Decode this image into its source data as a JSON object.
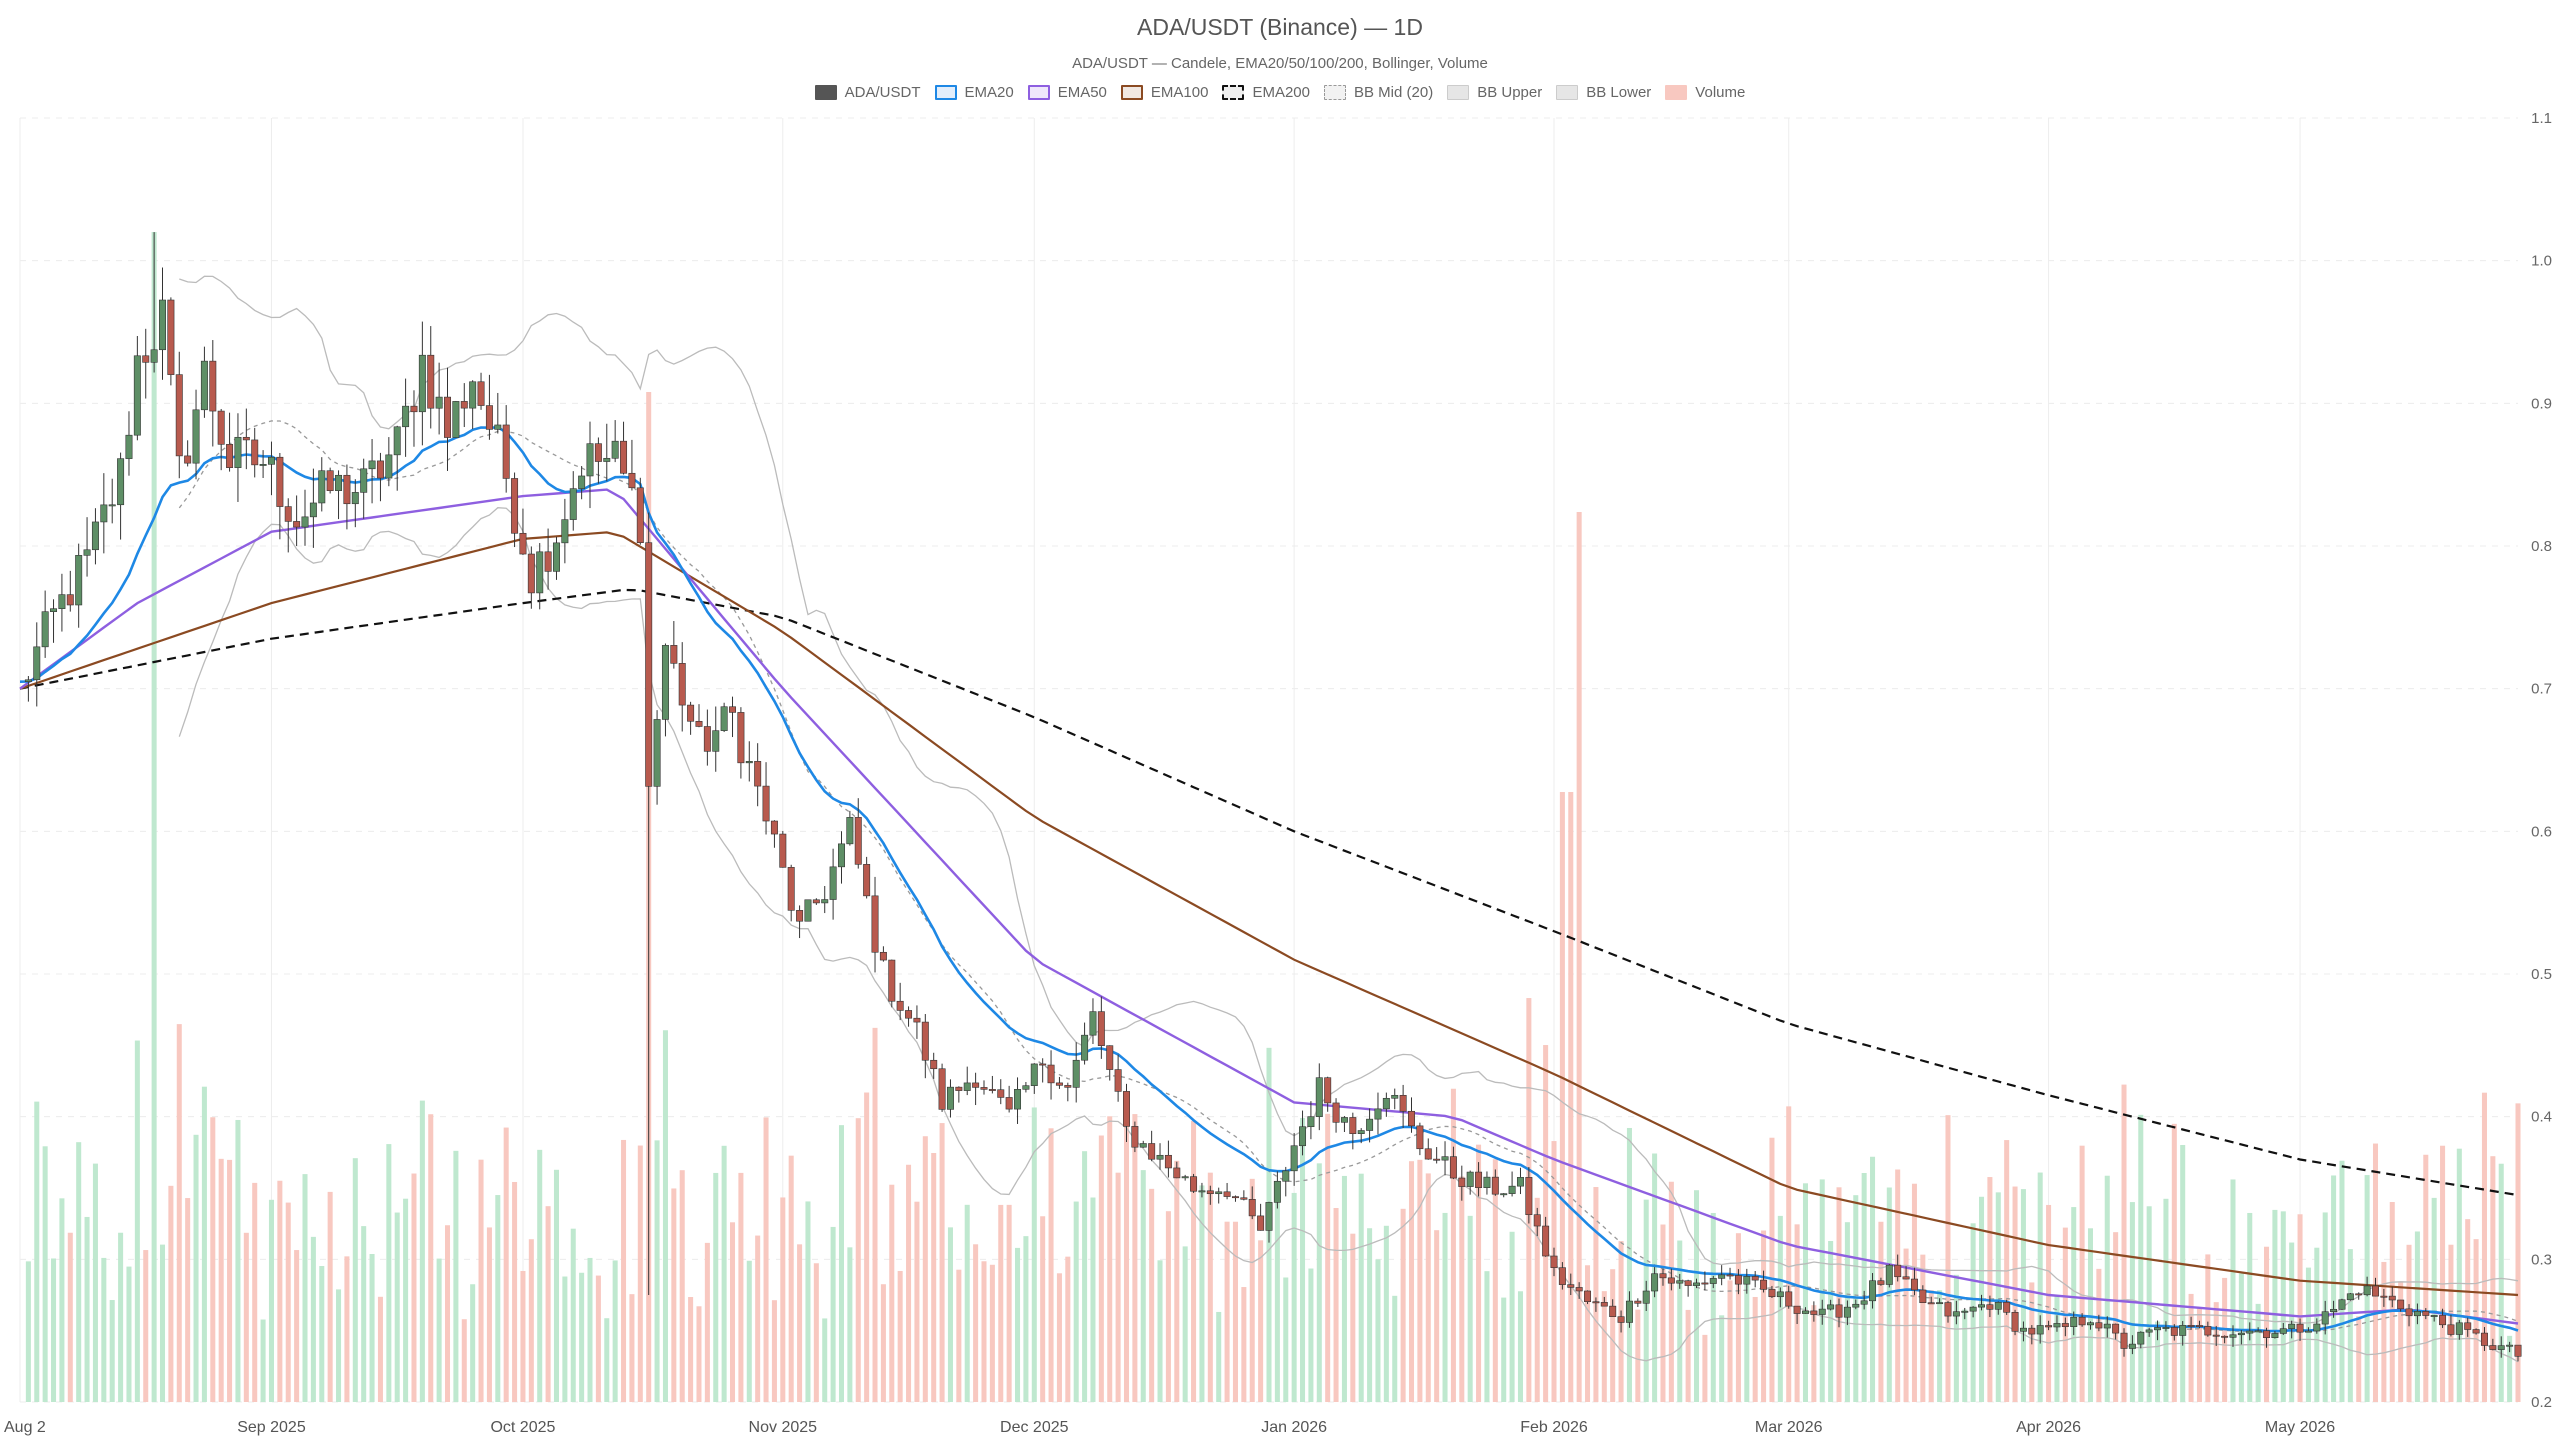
{
  "chart_data": {
    "type": "candlestick",
    "title": "ADA/USDT (Binance) — 1D",
    "subtitle": "ADA/USDT — Candele, EMA20/50/100/200, Bollinger, Volume",
    "legend": [
      "ADA/USDT",
      "EMA20",
      "EMA50",
      "EMA100",
      "EMA200",
      "BB Mid (20)",
      "BB Upper",
      "BB Lower",
      "Volume"
    ],
    "legend_placement": "top-center",
    "y_ticks": [
      0.2,
      0.3,
      0.4,
      0.5,
      0.6,
      0.7,
      0.8,
      0.9,
      1.0,
      1.1
    ],
    "y_tick_labels": [
      "0.2",
      "0.3",
      "0.4",
      "0.5",
      "0.6",
      "0.7",
      "0.8",
      "0.9",
      "1.0",
      "1.1"
    ],
    "ylim": [
      0.2,
      1.1
    ],
    "y_axis_side": "right",
    "xlim": [
      "2025-08-02",
      "2026-05-27"
    ],
    "x_ticks": [
      "2025-08-02",
      "2025-09-01",
      "2025-10-01",
      "2025-11-01",
      "2025-12-01",
      "2026-01-01",
      "2026-02-01",
      "2026-03-01",
      "2026-04-01",
      "2026-05-01"
    ],
    "x_tick_labels": [
      "Aug 2",
      "Sep 2025",
      "Oct 2025",
      "Nov 2025",
      "Dec 2025",
      "Jan 2026",
      "Feb 2026",
      "Mar 2026",
      "Apr 2026",
      "May 2026"
    ],
    "grid": true,
    "colors": {
      "up": "#5e8f66",
      "down": "#b85a4e",
      "ema20": "#1e88e5",
      "ema50": "#8e5fe0",
      "ema100": "#8b4a22",
      "ema200": "#111111",
      "bb_mid": "#999999",
      "bb_band": "#bbbbbb",
      "vol_up": "#bfe8cf",
      "vol_down": "#f8c8c0"
    },
    "close_anchors": [
      [
        "2025-08-02",
        0.7
      ],
      [
        "2025-08-06",
        0.75
      ],
      [
        "2025-08-10",
        0.79
      ],
      [
        "2025-08-14",
        0.85
      ],
      [
        "2025-08-16",
        0.93
      ],
      [
        "2025-08-19",
        0.96
      ],
      [
        "2025-08-21",
        0.85
      ],
      [
        "2025-08-24",
        0.92
      ],
      [
        "2025-08-27",
        0.86
      ],
      [
        "2025-08-31",
        0.86
      ],
      [
        "2025-09-04",
        0.82
      ],
      [
        "2025-09-08",
        0.84
      ],
      [
        "2025-09-12",
        0.84
      ],
      [
        "2025-09-16",
        0.87
      ],
      [
        "2025-09-19",
        0.93
      ],
      [
        "2025-09-22",
        0.88
      ],
      [
        "2025-09-25",
        0.92
      ],
      [
        "2025-09-29",
        0.85
      ],
      [
        "2025-10-02",
        0.78
      ],
      [
        "2025-10-05",
        0.81
      ],
      [
        "2025-10-08",
        0.86
      ],
      [
        "2025-10-12",
        0.86
      ],
      [
        "2025-10-15",
        0.82
      ],
      [
        "2025-10-16",
        0.63
      ],
      [
        "2025-10-18",
        0.73
      ],
      [
        "2025-10-22",
        0.66
      ],
      [
        "2025-10-26",
        0.68
      ],
      [
        "2025-10-30",
        0.61
      ],
      [
        "2025-11-03",
        0.53
      ],
      [
        "2025-11-06",
        0.56
      ],
      [
        "2025-11-09",
        0.6
      ],
      [
        "2025-11-13",
        0.5
      ],
      [
        "2025-11-17",
        0.46
      ],
      [
        "2025-11-20",
        0.41
      ],
      [
        "2025-11-24",
        0.43
      ],
      [
        "2025-11-28",
        0.4
      ],
      [
        "2025-12-02",
        0.44
      ],
      [
        "2025-12-05",
        0.42
      ],
      [
        "2025-12-08",
        0.47
      ],
      [
        "2025-12-12",
        0.39
      ],
      [
        "2025-12-16",
        0.37
      ],
      [
        "2025-12-20",
        0.35
      ],
      [
        "2025-12-24",
        0.35
      ],
      [
        "2025-12-28",
        0.32
      ],
      [
        "2026-01-01",
        0.38
      ],
      [
        "2026-01-04",
        0.42
      ],
      [
        "2026-01-08",
        0.39
      ],
      [
        "2026-01-12",
        0.42
      ],
      [
        "2026-01-16",
        0.38
      ],
      [
        "2026-01-20",
        0.36
      ],
      [
        "2026-01-24",
        0.35
      ],
      [
        "2026-01-28",
        0.35
      ],
      [
        "2026-02-01",
        0.29
      ],
      [
        "2026-02-05",
        0.27
      ],
      [
        "2026-02-09",
        0.26
      ],
      [
        "2026-02-13",
        0.29
      ],
      [
        "2026-02-17",
        0.28
      ],
      [
        "2026-02-21",
        0.29
      ],
      [
        "2026-02-25",
        0.28
      ],
      [
        "2026-03-01",
        0.27
      ],
      [
        "2026-03-05",
        0.26
      ],
      [
        "2026-03-09",
        0.27
      ],
      [
        "2026-03-13",
        0.29
      ],
      [
        "2026-03-17",
        0.27
      ],
      [
        "2026-03-21",
        0.26
      ],
      [
        "2026-03-25",
        0.27
      ],
      [
        "2026-03-29",
        0.25
      ],
      [
        "2026-04-02",
        0.25
      ],
      [
        "2026-04-06",
        0.26
      ],
      [
        "2026-04-10",
        0.24
      ],
      [
        "2026-04-14",
        0.25
      ],
      [
        "2026-04-18",
        0.25
      ],
      [
        "2026-04-22",
        0.25
      ],
      [
        "2026-04-26",
        0.25
      ],
      [
        "2026-04-30",
        0.25
      ],
      [
        "2026-05-04",
        0.26
      ],
      [
        "2026-05-08",
        0.28
      ],
      [
        "2026-05-12",
        0.27
      ],
      [
        "2026-05-16",
        0.26
      ],
      [
        "2026-05-20",
        0.25
      ],
      [
        "2026-05-24",
        0.24
      ],
      [
        "2026-05-27",
        0.233
      ]
    ],
    "ema200_anchors": [
      [
        "2025-08-02",
        0.7
      ],
      [
        "2025-09-01",
        0.735
      ],
      [
        "2025-10-01",
        0.76
      ],
      [
        "2025-10-14",
        0.77
      ],
      [
        "2025-11-01",
        0.75
      ],
      [
        "2025-12-01",
        0.68
      ],
      [
        "2026-01-01",
        0.6
      ],
      [
        "2026-02-01",
        0.53
      ],
      [
        "2026-03-01",
        0.465
      ],
      [
        "2026-04-01",
        0.415
      ],
      [
        "2026-05-01",
        0.37
      ],
      [
        "2026-05-27",
        0.345
      ]
    ],
    "ema100_anchors": [
      [
        "2025-08-02",
        0.7
      ],
      [
        "2025-09-01",
        0.76
      ],
      [
        "2025-10-01",
        0.805
      ],
      [
        "2025-10-12",
        0.81
      ],
      [
        "2025-11-01",
        0.74
      ],
      [
        "2025-12-01",
        0.61
      ],
      [
        "2026-01-01",
        0.51
      ],
      [
        "2026-02-01",
        0.43
      ],
      [
        "2026-03-01",
        0.35
      ],
      [
        "2026-04-01",
        0.31
      ],
      [
        "2026-05-01",
        0.285
      ],
      [
        "2026-05-27",
        0.275
      ]
    ],
    "ema50_anchors": [
      [
        "2025-08-02",
        0.7
      ],
      [
        "2025-08-16",
        0.76
      ],
      [
        "2025-09-01",
        0.81
      ],
      [
        "2025-10-01",
        0.835
      ],
      [
        "2025-10-12",
        0.84
      ],
      [
        "2025-11-01",
        0.7
      ],
      [
        "2025-12-01",
        0.51
      ],
      [
        "2026-01-01",
        0.41
      ],
      [
        "2026-01-20",
        0.4
      ],
      [
        "2026-02-01",
        0.37
      ],
      [
        "2026-03-01",
        0.31
      ],
      [
        "2026-04-01",
        0.275
      ],
      [
        "2026-05-01",
        0.26
      ],
      [
        "2026-05-14",
        0.265
      ],
      [
        "2026-05-27",
        0.255
      ]
    ],
    "volume_scale_note": "volume axis unlabeled"
  }
}
